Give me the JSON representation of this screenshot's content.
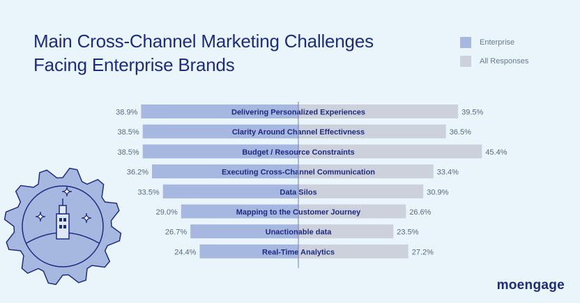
{
  "title_line1": "Main Cross-Channel Marketing Challenges",
  "title_line2": "Facing Enterprise Brands",
  "brand": "moengage",
  "colors": {
    "background": "#eaf5fb",
    "title": "#1d2c80",
    "enterprise": "#a6b7e0",
    "all": "#cdd1dc",
    "value_text": "#5c6680",
    "label_text": "#1d2c80",
    "illustration_fill": "#a6b7e0",
    "illustration_line": "#1d2c80"
  },
  "chart_data": {
    "type": "bar",
    "orientation": "horizontal-diverging",
    "legend_position": "top-right",
    "series": [
      {
        "name": "Enterprise",
        "values": [
          38.9,
          38.5,
          38.5,
          36.2,
          33.5,
          29.0,
          26.7,
          24.4
        ],
        "labels": [
          "38.9%",
          "38.5%",
          "38.5%",
          "36.2%",
          "33.5%",
          "29.0%",
          "26.7%",
          "24.4%"
        ]
      },
      {
        "name": "All Responses",
        "values": [
          39.5,
          36.5,
          45.4,
          33.4,
          30.9,
          26.6,
          23.5,
          27.2
        ],
        "labels": [
          "39.5%",
          "36.5%",
          "45.4%",
          "33.4%",
          "30.9%",
          "26.6%",
          "23.5%",
          "27.2%"
        ]
      }
    ],
    "categories": [
      "Delivering Personalized Experiences",
      "Clarity Around Channel Effectivness",
      "Budget / Resource Constraints",
      "Executing Cross-Channel Communication",
      "Data Silos",
      "Mapping to the Customer Journey",
      "Unactionable data",
      "Real-Time Analytics"
    ]
  },
  "illustration": {
    "icon": "gear-with-tower-icon"
  }
}
